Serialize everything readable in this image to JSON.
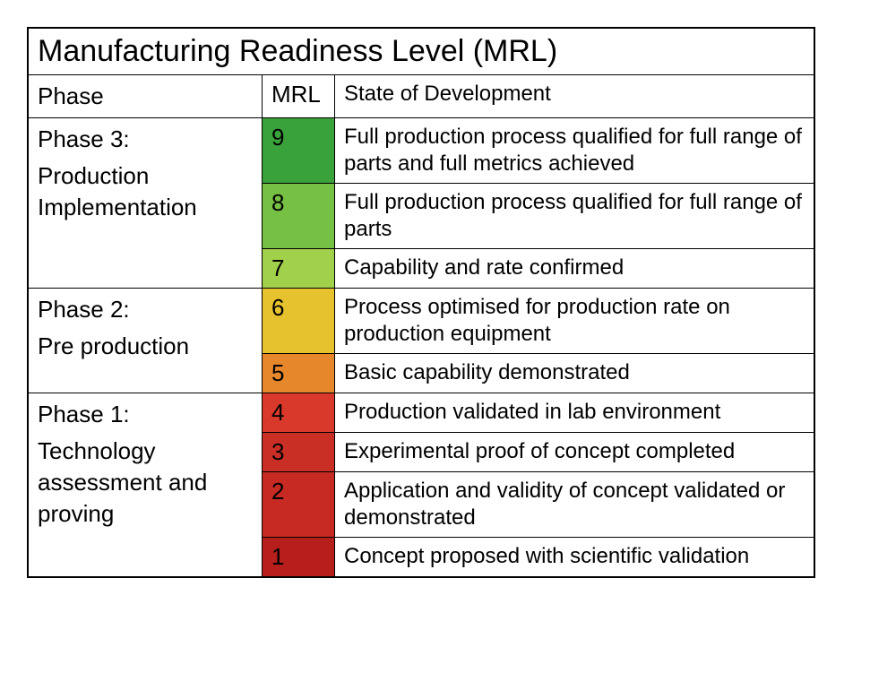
{
  "title": "Manufacturing Readiness Level (MRL)",
  "title_fontsize": 34,
  "headers": {
    "phase": "Phase",
    "mrl": "MRL",
    "state": "State of Development"
  },
  "header_fontsize": 26,
  "cell_fontsize_phase": 26,
  "cell_fontsize_mrl": 26,
  "cell_fontsize_desc": 24,
  "border_color": "#000000",
  "background_color": "#ffffff",
  "phases": [
    {
      "label": "Phase 3:\nProduction Implementation",
      "rows": [
        {
          "mrl": "9",
          "color": "#39a23a",
          "desc": "Full production process qualified for full range of parts and full metrics achieved"
        },
        {
          "mrl": "8",
          "color": "#76c043",
          "desc": "Full production process qualified for full range of parts"
        },
        {
          "mrl": "7",
          "color": "#a1d04a",
          "desc": "Capability and rate confirmed"
        }
      ]
    },
    {
      "label": "Phase 2:\nPre production",
      "rows": [
        {
          "mrl": "6",
          "color": "#e6c22f",
          "desc": "Process optimised for production rate on production equipment"
        },
        {
          "mrl": "5",
          "color": "#e6872b",
          "desc": "Basic capability demonstrated"
        }
      ]
    },
    {
      "label": "Phase 1:\nTechnology assessment and proving",
      "rows": [
        {
          "mrl": "4",
          "color": "#d9392b",
          "desc": "Production validated in lab environment"
        },
        {
          "mrl": "3",
          "color": "#ca2f26",
          "desc": "Experimental proof of concept completed"
        },
        {
          "mrl": "2",
          "color": "#c62a23",
          "desc": "Application and validity of concept validated or demonstrated"
        },
        {
          "mrl": "1",
          "color": "#b71f1c",
          "desc": "Concept proposed with scientific validation"
        }
      ]
    }
  ]
}
